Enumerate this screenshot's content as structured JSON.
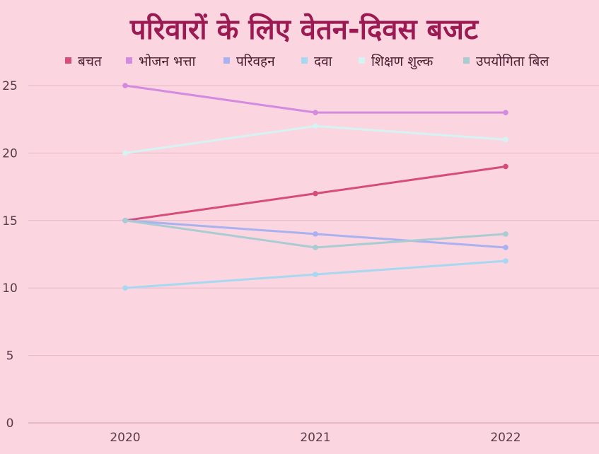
{
  "chart_data": {
    "type": "line",
    "title": "परिवारों के लिए वेतन-दिवस बजट",
    "xlabel": "",
    "ylabel": "",
    "categories": [
      "2020",
      "2021",
      "2022"
    ],
    "ylim": [
      0,
      25
    ],
    "yticks": [
      0,
      5,
      10,
      15,
      20,
      25
    ],
    "grid": true,
    "legend_position": "top",
    "series": [
      {
        "name": "बचत",
        "color": "#d64d7c",
        "values": [
          15,
          17,
          19
        ]
      },
      {
        "name": "भोजन भत्ता",
        "color": "#d48adf",
        "values": [
          25,
          23,
          23
        ]
      },
      {
        "name": "परिवहन",
        "color": "#a9b1f0",
        "values": [
          15,
          14,
          13
        ]
      },
      {
        "name": "दवा",
        "color": "#a7d8f2",
        "values": [
          10,
          11,
          12
        ]
      },
      {
        "name": "शिक्षण शुल्क",
        "color": "#d6f3f3",
        "values": [
          20,
          22,
          21
        ]
      },
      {
        "name": "उपयोगिता बिल",
        "color": "#a8ccd2",
        "values": [
          15,
          13,
          14
        ]
      }
    ]
  }
}
